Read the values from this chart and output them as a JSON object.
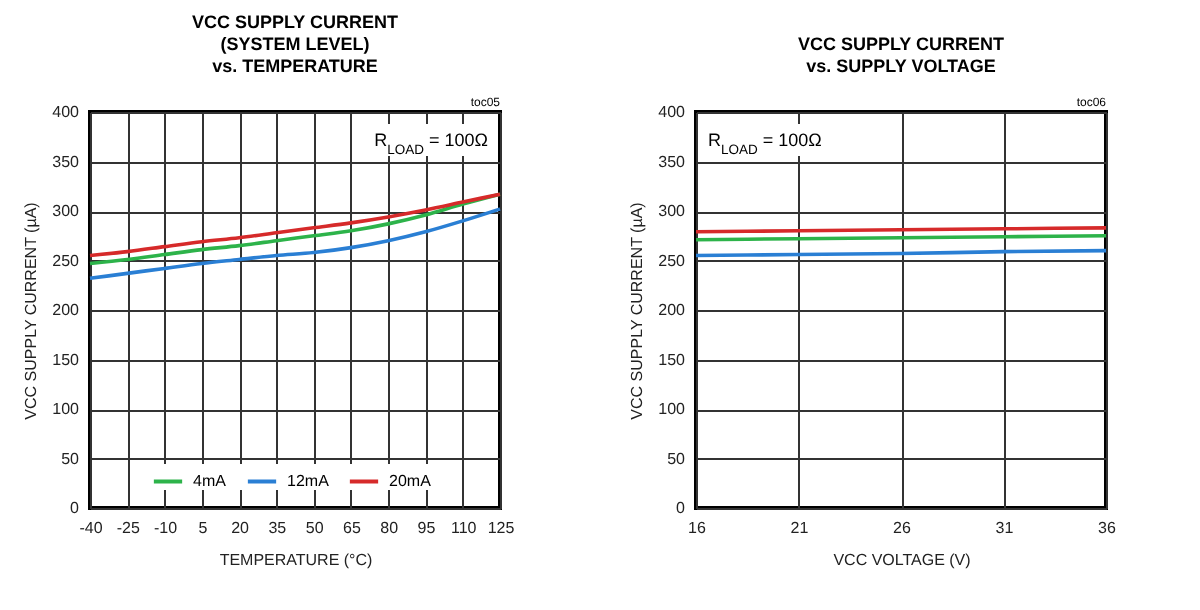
{
  "chart_data": [
    {
      "type": "line",
      "title": "VCC SUPPLY CURRENT\n(SYSTEM LEVEL)\nvs. TEMPERATURE",
      "xlabel": "TEMPERATURE (°C)",
      "ylabel": "VCC SUPPLY CURRENT (µA)",
      "annotations": [
        "R$_{LOAD}$ = 100Ω",
        "toc05"
      ],
      "x": [
        -40,
        -25,
        -10,
        5,
        20,
        35,
        50,
        65,
        80,
        95,
        110,
        125
      ],
      "series": [
        {
          "name": "4mA",
          "color": "#2db34a",
          "values": [
            247,
            251,
            256,
            261,
            265,
            270,
            275,
            280,
            287,
            296,
            307,
            317
          ]
        },
        {
          "name": "12mA",
          "color": "#2a7fd4",
          "values": [
            232,
            237,
            242,
            247,
            251,
            255,
            258,
            263,
            270,
            279,
            290,
            302
          ]
        },
        {
          "name": "20mA",
          "color": "#d62a2a",
          "values": [
            255,
            259,
            264,
            269,
            273,
            278,
            283,
            288,
            294,
            301,
            309,
            317
          ]
        }
      ],
      "xlim": [
        -40,
        125
      ],
      "xticks": [
        -40,
        -25,
        -10,
        5,
        20,
        35,
        50,
        65,
        80,
        95,
        110,
        125
      ],
      "ylim": [
        0,
        400
      ],
      "yticks": [
        0,
        50,
        100,
        150,
        200,
        250,
        300,
        350,
        400
      ],
      "grid": true,
      "legend": "bottom"
    },
    {
      "type": "line",
      "title": "VCC SUPPLY CURRENT\nvs. SUPPLY VOLTAGE",
      "xlabel": "VCC VOLTAGE (V)",
      "ylabel": "VCC SUPPLY CURRENT (µA)",
      "annotations": [
        "R$_{LOAD}$ = 100Ω",
        "toc06"
      ],
      "x": [
        16,
        21,
        26,
        31,
        36
      ],
      "series": [
        {
          "name": "4mA",
          "color": "#2db34a",
          "values": [
            271,
            272,
            273,
            274,
            275
          ]
        },
        {
          "name": "12mA",
          "color": "#2a7fd4",
          "values": [
            255,
            256,
            257,
            259,
            260
          ]
        },
        {
          "name": "20mA",
          "color": "#d62a2a",
          "values": [
            279,
            280,
            281,
            282,
            283
          ]
        }
      ],
      "xlim": [
        16,
        36
      ],
      "xticks": [
        16,
        21,
        26,
        31,
        36
      ],
      "ylim": [
        0,
        400
      ],
      "yticks": [
        0,
        50,
        100,
        150,
        200,
        250,
        300,
        350,
        400
      ],
      "grid": true,
      "legend": "bottom"
    }
  ]
}
